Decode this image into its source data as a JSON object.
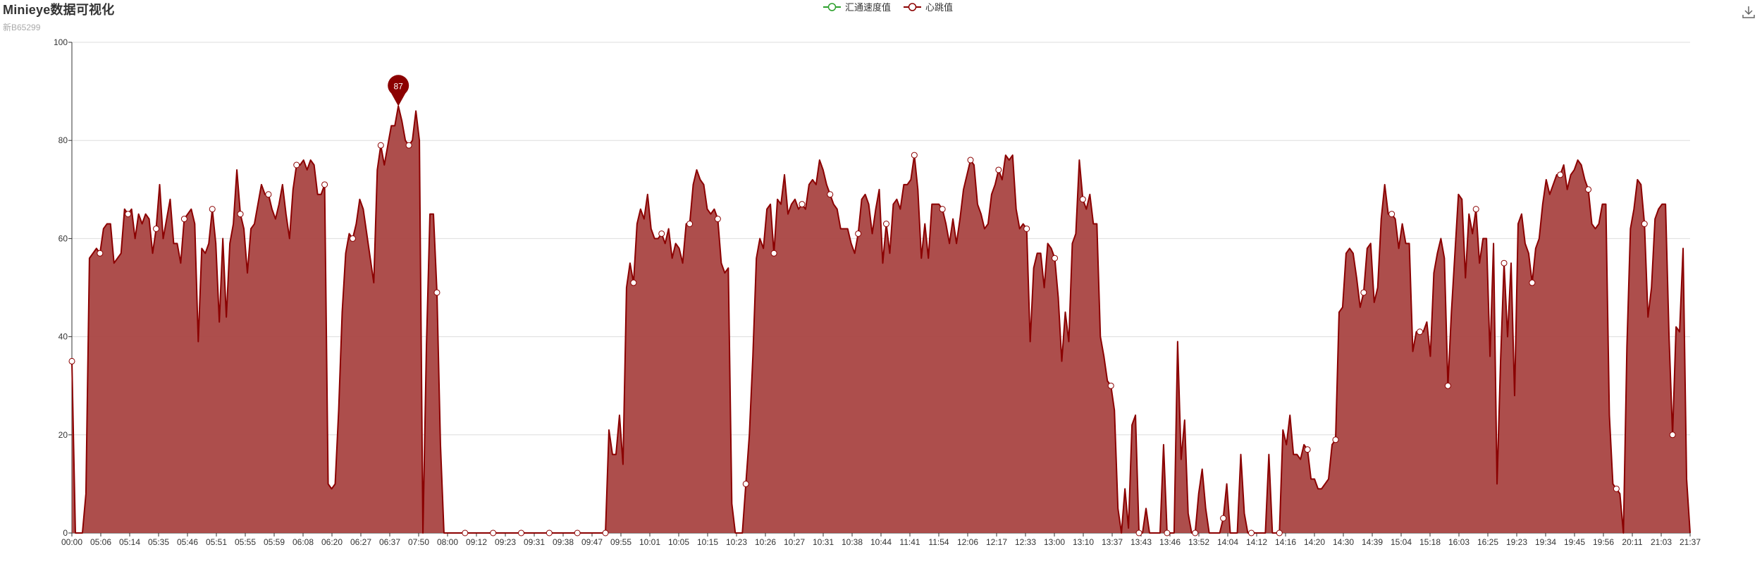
{
  "header": {
    "title": "Minieye数据可视化",
    "subtitle": "新B65299"
  },
  "legend": [
    {
      "name": "汇通速度值",
      "color": "#2ca02c"
    },
    {
      "name": "心跳值",
      "color": "#8b0000"
    }
  ],
  "toolbox": {
    "icon": "download-icon"
  },
  "colors": {
    "area_fill": "#a94442",
    "line": "#8b0000",
    "grid": "#dddddd",
    "axis": "#333333"
  },
  "chart_data": {
    "type": "area",
    "title": "Minieye数据可视化",
    "subtitle": "新B65299",
    "ylim": [
      0,
      100
    ],
    "yticks": [
      0,
      20,
      40,
      60,
      80,
      100
    ],
    "grid": true,
    "legend_position": "top-center",
    "x_tick_labels": [
      "00:00",
      "05:06",
      "05:14",
      "05:35",
      "05:46",
      "05:51",
      "05:55",
      "05:59",
      "06:08",
      "06:20",
      "06:27",
      "06:37",
      "07:50",
      "08:00",
      "09:12",
      "09:23",
      "09:31",
      "09:38",
      "09:47",
      "09:55",
      "10:01",
      "10:05",
      "10:15",
      "10:23",
      "10:26",
      "10:27",
      "10:31",
      "10:38",
      "10:44",
      "11:41",
      "11:54",
      "12:06",
      "12:17",
      "12:33",
      "13:00",
      "13:10",
      "13:37",
      "13:43",
      "13:46",
      "13:52",
      "14:04",
      "14:12",
      "14:16",
      "14:20",
      "14:30",
      "14:39",
      "15:04",
      "15:18",
      "16:03",
      "16:25",
      "19:23",
      "19:34",
      "19:45",
      "19:56",
      "20:11",
      "21:03",
      "21:37"
    ],
    "marker": {
      "label": "87",
      "value": 87,
      "series": "心跳值"
    },
    "series": [
      {
        "name": "汇通速度值",
        "values": []
      },
      {
        "name": "心跳值",
        "values": [
          35,
          0,
          0,
          0,
          8,
          56,
          57,
          58,
          57,
          62,
          63,
          63,
          55,
          56,
          57,
          66,
          65,
          66,
          60,
          65,
          63,
          65,
          64,
          57,
          62,
          71,
          60,
          64,
          68,
          59,
          59,
          55,
          64,
          65,
          66,
          63,
          39,
          58,
          57,
          59,
          66,
          59,
          43,
          60,
          44,
          59,
          63,
          74,
          65,
          62,
          53,
          62,
          63,
          67,
          71,
          69,
          69,
          66,
          64,
          67,
          71,
          65,
          60,
          70,
          75,
          75,
          76,
          74,
          76,
          75,
          69,
          69,
          71,
          10,
          9,
          10,
          25,
          45,
          57,
          61,
          60,
          63,
          68,
          66,
          61,
          56,
          51,
          74,
          79,
          75,
          79,
          83,
          83,
          87,
          84,
          80,
          79,
          80,
          86,
          80,
          0,
          38,
          65,
          65,
          49,
          18,
          0,
          0,
          0,
          0,
          0,
          0,
          0,
          0,
          0,
          0,
          0,
          0,
          0,
          0,
          0,
          0,
          0,
          0,
          0,
          0,
          0,
          0,
          0,
          0,
          0,
          0,
          0,
          0,
          0,
          0,
          0,
          0,
          0,
          0,
          0,
          0,
          0,
          0,
          0,
          0,
          0,
          0,
          0,
          0,
          0,
          0,
          0,
          21,
          16,
          16,
          24,
          14,
          50,
          55,
          51,
          63,
          66,
          64,
          69,
          62,
          60,
          60,
          61,
          59,
          62,
          56,
          59,
          58,
          55,
          63,
          63,
          71,
          74,
          72,
          71,
          66,
          65,
          66,
          64,
          55,
          53,
          54,
          6,
          0,
          0,
          0,
          10,
          20,
          36,
          56,
          60,
          58,
          66,
          67,
          57,
          68,
          67,
          73,
          65,
          67,
          68,
          66,
          67,
          66,
          71,
          72,
          71,
          76,
          74,
          71,
          69,
          67,
          66,
          62,
          62,
          62,
          59,
          57,
          61,
          68,
          69,
          67,
          61,
          66,
          70,
          55,
          63,
          57,
          67,
          68,
          66,
          71,
          71,
          72,
          77,
          70,
          56,
          63,
          56,
          67,
          67,
          67,
          66,
          63,
          59,
          64,
          59,
          64,
          70,
          73,
          76,
          75,
          67,
          65,
          62,
          63,
          69,
          71,
          74,
          72,
          77,
          76,
          77,
          66,
          62,
          63,
          62,
          39,
          54,
          57,
          57,
          50,
          59,
          58,
          56,
          48,
          35,
          45,
          39,
          59,
          61,
          76,
          68,
          66,
          69,
          63,
          63,
          40,
          36,
          31,
          30,
          25,
          5,
          0,
          9,
          1,
          22,
          24,
          0,
          0,
          5,
          0,
          0,
          0,
          0,
          18,
          0,
          0,
          0,
          39,
          15,
          23,
          4,
          0,
          0,
          8,
          13,
          5,
          0,
          0,
          0,
          0,
          3,
          10,
          0,
          0,
          0,
          16,
          4,
          0,
          0,
          0,
          0,
          0,
          0,
          16,
          0,
          0,
          0,
          21,
          18,
          24,
          16,
          16,
          15,
          18,
          17,
          11,
          11,
          9,
          9,
          10,
          11,
          18,
          19,
          45,
          46,
          57,
          58,
          57,
          52,
          46,
          49,
          58,
          59,
          47,
          50,
          64,
          71,
          65,
          65,
          64,
          58,
          63,
          59,
          59,
          37,
          41,
          41,
          41,
          43,
          36,
          53,
          57,
          60,
          56,
          30,
          45,
          57,
          69,
          68,
          52,
          65,
          61,
          66,
          55,
          60,
          60,
          36,
          59,
          10,
          35,
          55,
          40,
          55,
          28,
          63,
          65,
          59,
          57,
          51,
          58,
          60,
          67,
          72,
          69,
          71,
          73,
          73,
          75,
          70,
          73,
          74,
          76,
          75,
          72,
          70,
          63,
          62,
          63,
          67,
          67,
          24,
          10,
          9,
          8,
          0,
          38,
          62,
          66,
          72,
          71,
          63,
          44,
          50,
          64,
          66,
          67,
          67,
          40,
          20,
          42,
          41,
          58,
          11,
          0
        ]
      }
    ],
    "open_point_markers_on": "心跳值"
  }
}
